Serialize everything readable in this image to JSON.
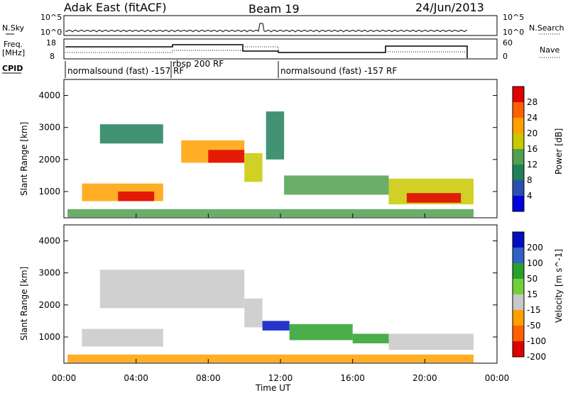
{
  "header": {
    "station": "Adak East (fitACF)",
    "beam": "Beam 19",
    "date": "24/Jun/2013"
  },
  "strip_labels": {
    "nsky": "N.Sky",
    "nsearch": "N.Search",
    "freq_line1": "Freq.",
    "freq_line2": "[MHz]",
    "nave": "Nave",
    "cpid": "CPID"
  },
  "noise_axis": {
    "left_ticks": [
      "10^5",
      "10^0"
    ],
    "right_ticks": [
      "10^5",
      "10^0"
    ]
  },
  "freq_axis": {
    "left_ticks": [
      "18",
      "8"
    ],
    "right_ticks": [
      "60",
      "0"
    ]
  },
  "cpid_segments": [
    {
      "start": 0.1,
      "end": 6.0,
      "label": "normalsound (fast) -157 RF"
    },
    {
      "start": 6.0,
      "end": 12.0,
      "label": "rbsp 200 RF"
    },
    {
      "start": 12.0,
      "end": 24.0,
      "label": "normalsound (fast) -157 RF"
    }
  ],
  "chart_data": [
    {
      "type": "heatmap",
      "panel": "power",
      "ylabel": "Slant Range [km]",
      "y_ticks": [
        1000,
        2000,
        3000,
        4000
      ],
      "ylim": [
        180,
        4500
      ],
      "x_ticks": [
        "00:00",
        "04:00",
        "08:00",
        "12:00",
        "16:00",
        "20:00",
        "00:00"
      ],
      "xlim_hours": [
        0,
        24
      ],
      "colorbar": {
        "label": "Power [dB]",
        "ticks": [
          "28",
          "24",
          "20",
          "16",
          "12",
          "8",
          "4"
        ],
        "colors": [
          "#e00000",
          "#ff6000",
          "#ffa000",
          "#c8c800",
          "#50a050",
          "#20805a",
          "#2850b0",
          "#0000e0"
        ]
      },
      "regions": [
        {
          "t0": 1.0,
          "t1": 5.5,
          "r0": 700,
          "r1": 1250,
          "level": 20
        },
        {
          "t0": 3.0,
          "t1": 5.0,
          "r0": 700,
          "r1": 1000,
          "level": 28
        },
        {
          "t0": 2.0,
          "t1": 5.5,
          "r0": 2500,
          "r1": 3100,
          "level": 10
        },
        {
          "t0": 6.5,
          "t1": 10.0,
          "r0": 1900,
          "r1": 2600,
          "level": 22
        },
        {
          "t0": 8.0,
          "t1": 10.0,
          "r0": 1900,
          "r1": 2300,
          "level": 28
        },
        {
          "t0": 10.0,
          "t1": 11.0,
          "r0": 1300,
          "r1": 2200,
          "level": 18
        },
        {
          "t0": 11.2,
          "t1": 12.2,
          "r0": 2000,
          "r1": 3500,
          "level": 10
        },
        {
          "t0": 12.2,
          "t1": 18.0,
          "r0": 900,
          "r1": 1500,
          "level": 14
        },
        {
          "t0": 18.0,
          "t1": 22.7,
          "r0": 600,
          "r1": 1400,
          "level": 18
        },
        {
          "t0": 19.0,
          "t1": 22.0,
          "r0": 650,
          "r1": 950,
          "level": 28
        },
        {
          "t0": 0.2,
          "t1": 22.7,
          "r0": 200,
          "r1": 450,
          "level": 12
        }
      ]
    },
    {
      "type": "heatmap",
      "panel": "velocity",
      "ylabel": "Slant Range [km]",
      "y_ticks": [
        1000,
        2000,
        3000,
        4000
      ],
      "ylim": [
        180,
        4500
      ],
      "x_ticks": [
        "00:00",
        "04:00",
        "08:00",
        "12:00",
        "16:00",
        "20:00",
        "00:00"
      ],
      "xlim_hours": [
        0,
        24
      ],
      "xlabel": "Time UT",
      "colorbar": {
        "label": "Velocity [m s^-1]",
        "ticks": [
          "200",
          "100",
          "50",
          "15",
          "-15",
          "-50",
          "-100",
          "-200"
        ],
        "colors": [
          "#0010c0",
          "#3060c8",
          "#2aa02a",
          "#70d040",
          "#c8c8c8",
          "#ffa000",
          "#ff6000",
          "#e00000"
        ]
      },
      "regions": [
        {
          "t0": 1.0,
          "t1": 5.5,
          "r0": 700,
          "r1": 1250,
          "level": 0
        },
        {
          "t0": 2.0,
          "t1": 10.0,
          "r0": 1900,
          "r1": 3100,
          "level": 0
        },
        {
          "t0": 10.0,
          "t1": 11.0,
          "r0": 1300,
          "r1": 2200,
          "level": 0
        },
        {
          "t0": 11.0,
          "t1": 12.5,
          "r0": 1200,
          "r1": 1500,
          "level": 200
        },
        {
          "t0": 12.5,
          "t1": 16.0,
          "r0": 900,
          "r1": 1400,
          "level": 50
        },
        {
          "t0": 16.0,
          "t1": 18.0,
          "r0": 800,
          "r1": 1100,
          "level": 50
        },
        {
          "t0": 18.0,
          "t1": 22.7,
          "r0": 600,
          "r1": 1100,
          "level": 0
        },
        {
          "t0": 0.2,
          "t1": 22.7,
          "r0": 200,
          "r1": 450,
          "level": -50
        }
      ]
    }
  ]
}
